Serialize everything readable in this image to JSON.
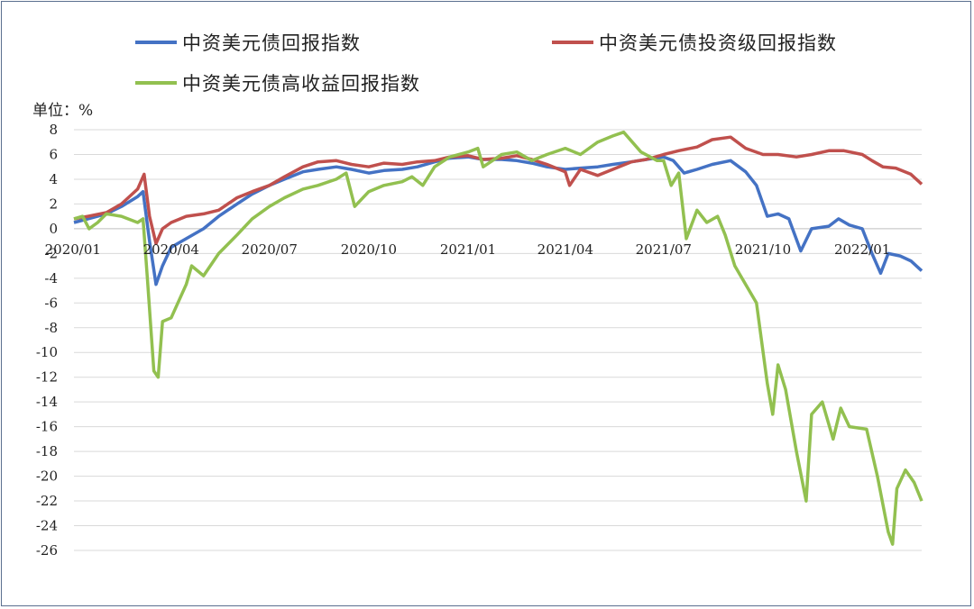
{
  "chart_data": {
    "type": "line",
    "unit_label": "单位：%",
    "ylim": [
      -26,
      8
    ],
    "y_ticks": [
      "8",
      "6",
      "4",
      "2",
      "0",
      "-2",
      "-4",
      "-6",
      "-8",
      "-10",
      "-12",
      "-14",
      "-16",
      "-18",
      "-20",
      "-22",
      "-24",
      "-26"
    ],
    "x_ticks": [
      "2020/01",
      "2020/04",
      "2020/07",
      "2020/10",
      "2021/01",
      "2021/04",
      "2021/07",
      "2021/10",
      "2022/01"
    ],
    "grid": true,
    "legend_position": "top",
    "series": [
      {
        "name": "中资美元债回报指数",
        "color": "#4472c4",
        "points": [
          [
            "2020-01-02",
            0.5
          ],
          [
            "2020-01-15",
            0.8
          ],
          [
            "2020-02-01",
            1.2
          ],
          [
            "2020-02-15",
            1.8
          ],
          [
            "2020-03-01",
            2.6
          ],
          [
            "2020-03-06",
            3.0
          ],
          [
            "2020-03-12",
            -1.0
          ],
          [
            "2020-03-18",
            -4.5
          ],
          [
            "2020-03-24",
            -3.0
          ],
          [
            "2020-04-01",
            -1.5
          ],
          [
            "2020-04-15",
            -0.8
          ],
          [
            "2020-05-01",
            0.0
          ],
          [
            "2020-05-15",
            1.0
          ],
          [
            "2020-06-01",
            2.0
          ],
          [
            "2020-06-15",
            2.8
          ],
          [
            "2020-07-01",
            3.5
          ],
          [
            "2020-07-15",
            4.0
          ],
          [
            "2020-08-01",
            4.6
          ],
          [
            "2020-08-15",
            4.8
          ],
          [
            "2020-09-01",
            5.0
          ],
          [
            "2020-09-15",
            4.8
          ],
          [
            "2020-10-01",
            4.5
          ],
          [
            "2020-10-15",
            4.7
          ],
          [
            "2020-11-01",
            4.8
          ],
          [
            "2020-11-15",
            5.0
          ],
          [
            "2020-12-01",
            5.4
          ],
          [
            "2020-12-15",
            5.7
          ],
          [
            "2021-01-01",
            5.8
          ],
          [
            "2021-01-15",
            5.6
          ],
          [
            "2021-02-01",
            5.6
          ],
          [
            "2021-02-15",
            5.5
          ],
          [
            "2021-03-01",
            5.3
          ],
          [
            "2021-03-15",
            5.0
          ],
          [
            "2021-04-01",
            4.8
          ],
          [
            "2021-04-15",
            4.9
          ],
          [
            "2021-05-01",
            5.0
          ],
          [
            "2021-05-15",
            5.2
          ],
          [
            "2021-06-01",
            5.4
          ],
          [
            "2021-06-15",
            5.6
          ],
          [
            "2021-07-01",
            5.8
          ],
          [
            "2021-07-10",
            5.5
          ],
          [
            "2021-07-20",
            4.5
          ],
          [
            "2021-08-01",
            4.8
          ],
          [
            "2021-08-15",
            5.2
          ],
          [
            "2021-09-01",
            5.5
          ],
          [
            "2021-09-15",
            4.6
          ],
          [
            "2021-09-25",
            3.5
          ],
          [
            "2021-10-05",
            1.0
          ],
          [
            "2021-10-15",
            1.2
          ],
          [
            "2021-10-25",
            0.8
          ],
          [
            "2021-11-05",
            -1.8
          ],
          [
            "2021-11-15",
            0.0
          ],
          [
            "2021-12-01",
            0.2
          ],
          [
            "2021-12-10",
            0.8
          ],
          [
            "2021-12-20",
            0.3
          ],
          [
            "2022-01-01",
            0.0
          ],
          [
            "2022-01-10",
            -2.0
          ],
          [
            "2022-01-18",
            -3.6
          ],
          [
            "2022-01-25",
            -2.0
          ],
          [
            "2022-02-05",
            -2.2
          ],
          [
            "2022-02-15",
            -2.6
          ],
          [
            "2022-02-25",
            -3.4
          ]
        ]
      },
      {
        "name": "中资美元债投资级回报指数",
        "color": "#c0504d",
        "points": [
          [
            "2020-01-02",
            0.8
          ],
          [
            "2020-01-15",
            1.0
          ],
          [
            "2020-02-01",
            1.3
          ],
          [
            "2020-02-15",
            2.0
          ],
          [
            "2020-03-01",
            3.2
          ],
          [
            "2020-03-07",
            4.4
          ],
          [
            "2020-03-12",
            1.0
          ],
          [
            "2020-03-18",
            -1.2
          ],
          [
            "2020-03-24",
            0.0
          ],
          [
            "2020-04-01",
            0.5
          ],
          [
            "2020-04-15",
            1.0
          ],
          [
            "2020-05-01",
            1.2
          ],
          [
            "2020-05-15",
            1.5
          ],
          [
            "2020-06-01",
            2.5
          ],
          [
            "2020-06-15",
            3.0
          ],
          [
            "2020-07-01",
            3.5
          ],
          [
            "2020-07-15",
            4.2
          ],
          [
            "2020-08-01",
            5.0
          ],
          [
            "2020-08-15",
            5.4
          ],
          [
            "2020-09-01",
            5.5
          ],
          [
            "2020-09-15",
            5.2
          ],
          [
            "2020-10-01",
            5.0
          ],
          [
            "2020-10-15",
            5.3
          ],
          [
            "2020-11-01",
            5.2
          ],
          [
            "2020-11-15",
            5.4
          ],
          [
            "2020-12-01",
            5.5
          ],
          [
            "2020-12-15",
            5.8
          ],
          [
            "2021-01-01",
            5.9
          ],
          [
            "2021-01-15",
            5.6
          ],
          [
            "2021-02-01",
            5.7
          ],
          [
            "2021-02-15",
            5.9
          ],
          [
            "2021-03-01",
            5.6
          ],
          [
            "2021-03-15",
            5.2
          ],
          [
            "2021-04-01",
            4.6
          ],
          [
            "2021-04-05",
            3.5
          ],
          [
            "2021-04-15",
            4.8
          ],
          [
            "2021-05-01",
            4.3
          ],
          [
            "2021-05-15",
            4.8
          ],
          [
            "2021-06-01",
            5.4
          ],
          [
            "2021-06-15",
            5.6
          ],
          [
            "2021-07-01",
            6.0
          ],
          [
            "2021-07-15",
            6.3
          ],
          [
            "2021-08-01",
            6.6
          ],
          [
            "2021-08-15",
            7.2
          ],
          [
            "2021-09-01",
            7.4
          ],
          [
            "2021-09-15",
            6.5
          ],
          [
            "2021-10-01",
            6.0
          ],
          [
            "2021-10-15",
            6.0
          ],
          [
            "2021-11-01",
            5.8
          ],
          [
            "2021-11-15",
            6.0
          ],
          [
            "2021-12-01",
            6.3
          ],
          [
            "2021-12-15",
            6.3
          ],
          [
            "2022-01-01",
            6.0
          ],
          [
            "2022-01-10",
            5.5
          ],
          [
            "2022-01-20",
            5.0
          ],
          [
            "2022-02-01",
            4.9
          ],
          [
            "2022-02-15",
            4.4
          ],
          [
            "2022-02-25",
            3.6
          ]
        ]
      },
      {
        "name": "中资美元债高收益回报指数",
        "color": "#92c050",
        "points": [
          [
            "2020-01-02",
            0.8
          ],
          [
            "2020-01-10",
            1.0
          ],
          [
            "2020-01-16",
            0.0
          ],
          [
            "2020-01-24",
            0.5
          ],
          [
            "2020-02-01",
            1.2
          ],
          [
            "2020-02-15",
            1.0
          ],
          [
            "2020-03-01",
            0.5
          ],
          [
            "2020-03-06",
            0.8
          ],
          [
            "2020-03-10",
            -4.0
          ],
          [
            "2020-03-16",
            -11.5
          ],
          [
            "2020-03-20",
            -12.0
          ],
          [
            "2020-03-24",
            -7.5
          ],
          [
            "2020-04-01",
            -7.2
          ],
          [
            "2020-04-15",
            -4.5
          ],
          [
            "2020-04-20",
            -3.0
          ],
          [
            "2020-05-01",
            -3.8
          ],
          [
            "2020-05-15",
            -2.0
          ],
          [
            "2020-06-01",
            -0.5
          ],
          [
            "2020-06-15",
            0.8
          ],
          [
            "2020-07-01",
            1.8
          ],
          [
            "2020-07-15",
            2.5
          ],
          [
            "2020-08-01",
            3.2
          ],
          [
            "2020-08-15",
            3.5
          ],
          [
            "2020-09-01",
            4.0
          ],
          [
            "2020-09-10",
            4.5
          ],
          [
            "2020-09-18",
            1.8
          ],
          [
            "2020-10-01",
            3.0
          ],
          [
            "2020-10-15",
            3.5
          ],
          [
            "2020-11-01",
            3.8
          ],
          [
            "2020-11-10",
            4.2
          ],
          [
            "2020-11-20",
            3.5
          ],
          [
            "2020-12-01",
            5.0
          ],
          [
            "2020-12-15",
            5.8
          ],
          [
            "2021-01-01",
            6.2
          ],
          [
            "2021-01-10",
            6.5
          ],
          [
            "2021-01-15",
            5.0
          ],
          [
            "2021-02-01",
            6.0
          ],
          [
            "2021-02-15",
            6.2
          ],
          [
            "2021-03-01",
            5.5
          ],
          [
            "2021-03-15",
            6.0
          ],
          [
            "2021-04-01",
            6.5
          ],
          [
            "2021-04-15",
            6.0
          ],
          [
            "2021-05-01",
            7.0
          ],
          [
            "2021-05-15",
            7.5
          ],
          [
            "2021-05-25",
            7.8
          ],
          [
            "2021-06-10",
            6.2
          ],
          [
            "2021-06-25",
            5.5
          ],
          [
            "2021-07-01",
            5.5
          ],
          [
            "2021-07-08",
            3.5
          ],
          [
            "2021-07-15",
            4.5
          ],
          [
            "2021-07-22",
            -0.8
          ],
          [
            "2021-08-01",
            1.5
          ],
          [
            "2021-08-10",
            0.5
          ],
          [
            "2021-08-20",
            1.0
          ],
          [
            "2021-08-27",
            -0.5
          ],
          [
            "2021-09-05",
            -3.0
          ],
          [
            "2021-09-15",
            -4.5
          ],
          [
            "2021-09-25",
            -6.0
          ],
          [
            "2021-10-05",
            -12.5
          ],
          [
            "2021-10-10",
            -15.0
          ],
          [
            "2021-10-15",
            -11.0
          ],
          [
            "2021-10-22",
            -13.0
          ],
          [
            "2021-11-01",
            -18.0
          ],
          [
            "2021-11-10",
            -22.0
          ],
          [
            "2021-11-15",
            -15.0
          ],
          [
            "2021-11-25",
            -14.0
          ],
          [
            "2021-12-05",
            -17.0
          ],
          [
            "2021-12-12",
            -14.5
          ],
          [
            "2021-12-20",
            -16.0
          ],
          [
            "2022-01-05",
            -16.2
          ],
          [
            "2022-01-15",
            -20.0
          ],
          [
            "2022-01-25",
            -24.5
          ],
          [
            "2022-01-29",
            -25.5
          ],
          [
            "2022-02-02",
            -21.0
          ],
          [
            "2022-02-10",
            -19.5
          ],
          [
            "2022-02-18",
            -20.5
          ],
          [
            "2022-02-25",
            -22.0
          ]
        ]
      }
    ]
  }
}
